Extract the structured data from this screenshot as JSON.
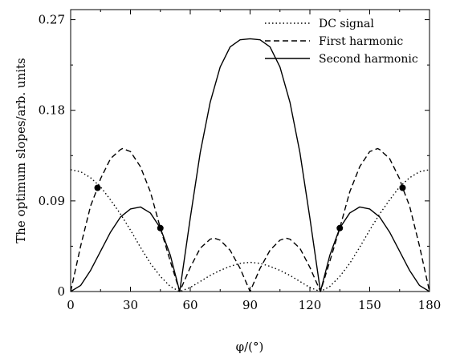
{
  "chart_data": {
    "type": "line",
    "xlabel": "φ/(°)",
    "ylabel": "The optimum slopes/arb. units",
    "xlim": [
      0,
      180
    ],
    "ylim": [
      0,
      0.28
    ],
    "x_ticks": [
      0,
      30,
      60,
      90,
      120,
      150,
      180
    ],
    "x_tick_labels": [
      "0",
      "30",
      "60",
      "90",
      "120",
      "150",
      "180"
    ],
    "y_ticks": [
      0,
      0.09,
      0.18,
      0.27
    ],
    "y_tick_labels": [
      "0",
      "0.09",
      "0.18",
      "0.27"
    ],
    "grid": false,
    "legend_position": "top-right",
    "series": [
      {
        "name": "DC signal",
        "style": "dotted",
        "x": [
          0,
          5,
          10,
          15,
          20,
          25,
          30,
          35,
          40,
          45,
          50,
          54.7,
          60,
          65,
          70,
          75,
          80,
          85,
          90,
          95,
          100,
          105,
          110,
          115,
          120,
          125.3,
          130,
          135,
          140,
          145,
          150,
          155,
          160,
          165,
          170,
          175,
          180
        ],
        "y": [
          0.121,
          0.119,
          0.113,
          0.104,
          0.091,
          0.077,
          0.061,
          0.044,
          0.028,
          0.015,
          0.005,
          0,
          0.004,
          0.01,
          0.016,
          0.021,
          0.025,
          0.028,
          0.029,
          0.028,
          0.025,
          0.021,
          0.016,
          0.01,
          0.004,
          0,
          0.005,
          0.015,
          0.028,
          0.044,
          0.061,
          0.077,
          0.091,
          0.104,
          0.113,
          0.119,
          0.121
        ]
      },
      {
        "name": "First harmonic",
        "style": "dashed",
        "x": [
          0,
          5,
          10,
          13.5,
          15,
          20,
          25,
          26,
          30,
          35,
          40,
          45,
          50,
          54.7,
          60,
          65,
          70,
          72,
          75,
          80,
          85,
          90,
          95,
          100,
          105,
          108,
          110,
          115,
          120,
          125.3,
          130,
          135,
          140,
          145,
          150,
          154,
          155,
          160,
          165,
          166.5,
          170,
          175,
          180
        ],
        "y": [
          0,
          0.045,
          0.085,
          0.103,
          0.112,
          0.132,
          0.141,
          0.142,
          0.139,
          0.124,
          0.099,
          0.063,
          0.03,
          0,
          0.024,
          0.043,
          0.052,
          0.053,
          0.051,
          0.041,
          0.023,
          0,
          0.023,
          0.041,
          0.051,
          0.053,
          0.052,
          0.043,
          0.024,
          0,
          0.03,
          0.063,
          0.099,
          0.124,
          0.139,
          0.142,
          0.141,
          0.132,
          0.112,
          0.103,
          0.085,
          0.045,
          0
        ]
      },
      {
        "name": "Second harmonic",
        "style": "solid",
        "x": [
          0,
          5,
          10,
          15,
          20,
          25,
          30,
          35,
          40,
          45,
          50,
          54.7,
          60,
          65,
          70,
          75,
          80,
          85,
          90,
          95,
          100,
          105,
          110,
          115,
          120,
          125.3,
          130,
          135,
          140,
          145,
          150,
          155,
          160,
          165,
          170,
          175,
          180
        ],
        "y": [
          0,
          0.006,
          0.021,
          0.04,
          0.059,
          0.074,
          0.082,
          0.084,
          0.078,
          0.063,
          0.036,
          0,
          0.073,
          0.138,
          0.188,
          0.223,
          0.243,
          0.25,
          0.251,
          0.25,
          0.243,
          0.223,
          0.188,
          0.138,
          0.073,
          0,
          0.036,
          0.063,
          0.078,
          0.084,
          0.082,
          0.074,
          0.059,
          0.04,
          0.021,
          0.006,
          0
        ]
      }
    ],
    "markers": [
      {
        "x": 13.5,
        "y": 0.103
      },
      {
        "x": 45,
        "y": 0.063
      },
      {
        "x": 135,
        "y": 0.063
      },
      {
        "x": 166.5,
        "y": 0.103
      }
    ]
  }
}
